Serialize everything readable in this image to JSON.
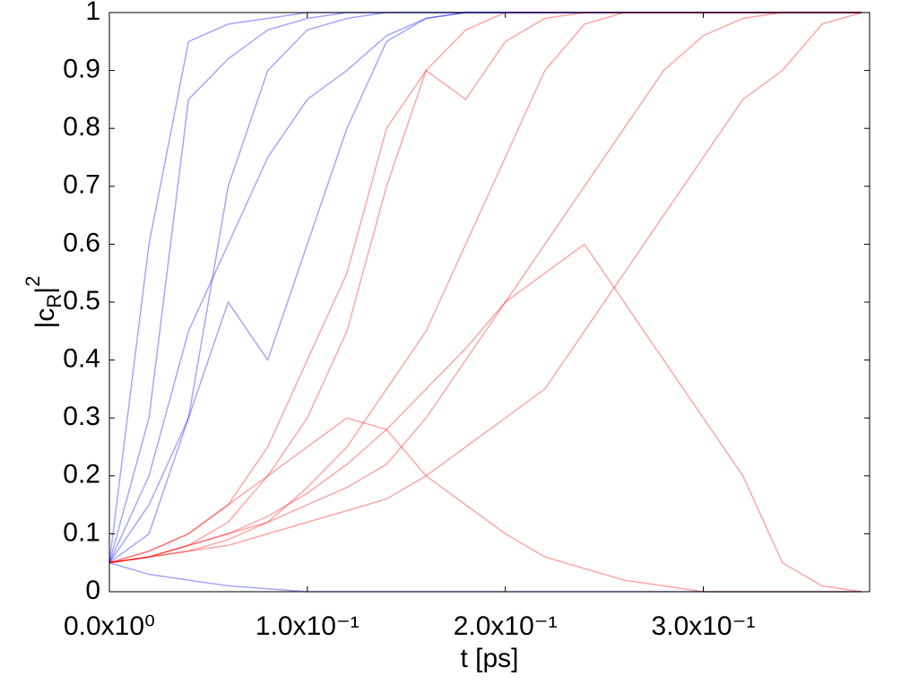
{
  "chart_data": {
    "type": "line",
    "xlabel": "t [ps]",
    "ylabel_parts": [
      "|c",
      "R",
      "|",
      "2"
    ],
    "xlim": [
      0,
      0.384
    ],
    "ylim": [
      0,
      1
    ],
    "xticks": [
      {
        "value": 0,
        "label": "0.0x10⁰"
      },
      {
        "value": 0.1,
        "label": "1.0x10⁻¹"
      },
      {
        "value": 0.2,
        "label": "2.0x10⁻¹"
      },
      {
        "value": 0.3,
        "label": "3.0x10⁻¹"
      }
    ],
    "yticks": [
      0,
      0.1,
      0.2,
      0.3,
      0.4,
      0.5,
      0.6,
      0.7,
      0.8,
      0.9,
      1
    ],
    "grid": false,
    "alpha": 0.35,
    "x": [
      0,
      0.02,
      0.04,
      0.06,
      0.08,
      0.1,
      0.12,
      0.14,
      0.16,
      0.18,
      0.2,
      0.22,
      0.24,
      0.26,
      0.28,
      0.3,
      0.32,
      0.34,
      0.36,
      0.38
    ],
    "series": [
      {
        "color": "#0000ff",
        "values": [
          0.05,
          0.6,
          0.95,
          0.98,
          0.99,
          1,
          1,
          1,
          1,
          1,
          1,
          1,
          1,
          1,
          1,
          1,
          1,
          1,
          1,
          1
        ]
      },
      {
        "color": "#0000ff",
        "values": [
          0.05,
          0.3,
          0.85,
          0.92,
          0.97,
          0.99,
          1,
          1,
          1,
          1,
          1,
          1,
          1,
          1,
          1,
          1,
          1,
          1,
          1,
          1
        ]
      },
      {
        "color": "#0000ff",
        "values": [
          0.05,
          0.1,
          0.3,
          0.7,
          0.9,
          0.97,
          0.99,
          1,
          1,
          1,
          1,
          1,
          1,
          1,
          1,
          1,
          1,
          1,
          1,
          1
        ]
      },
      {
        "color": "#0000ff",
        "values": [
          0.05,
          0.15,
          0.3,
          0.5,
          0.4,
          0.6,
          0.8,
          0.95,
          0.99,
          1,
          1,
          1,
          1,
          1,
          1,
          1,
          1,
          1,
          1,
          1
        ]
      },
      {
        "color": "#0000ff",
        "values": [
          0.05,
          0.2,
          0.45,
          0.6,
          0.75,
          0.85,
          0.9,
          0.96,
          0.99,
          1,
          1,
          1,
          1,
          1,
          1,
          1,
          1,
          1,
          1,
          1
        ]
      },
      {
        "color": "#0000ff",
        "values": [
          0.05,
          0.03,
          0.02,
          0.01,
          0.005,
          0,
          0,
          0,
          0,
          0,
          0,
          0,
          0,
          0,
          0,
          0,
          0,
          0,
          0,
          0
        ]
      },
      {
        "color": "#ff0000",
        "values": [
          0.05,
          0.06,
          0.08,
          0.12,
          0.2,
          0.3,
          0.45,
          0.7,
          0.9,
          0.97,
          1,
          1,
          1,
          1,
          1,
          1,
          1,
          1,
          1,
          1
        ]
      },
      {
        "color": "#ff0000",
        "values": [
          0.05,
          0.06,
          0.07,
          0.09,
          0.12,
          0.18,
          0.25,
          0.35,
          0.45,
          0.6,
          0.75,
          0.9,
          0.98,
          1,
          1,
          1,
          1,
          1,
          1,
          1
        ]
      },
      {
        "color": "#ff0000",
        "values": [
          0.05,
          0.07,
          0.1,
          0.15,
          0.25,
          0.4,
          0.55,
          0.8,
          0.9,
          0.85,
          0.95,
          0.99,
          1,
          1,
          1,
          1,
          1,
          1,
          1,
          1
        ]
      },
      {
        "color": "#ff0000",
        "values": [
          0.05,
          0.06,
          0.08,
          0.1,
          0.13,
          0.17,
          0.22,
          0.28,
          0.35,
          0.42,
          0.5,
          0.6,
          0.7,
          0.8,
          0.9,
          0.96,
          0.99,
          1,
          1,
          1
        ]
      },
      {
        "color": "#ff0000",
        "values": [
          0.05,
          0.07,
          0.1,
          0.15,
          0.2,
          0.25,
          0.3,
          0.28,
          0.2,
          0.15,
          0.1,
          0.06,
          0.04,
          0.02,
          0.01,
          0,
          0,
          0,
          0,
          0
        ]
      },
      {
        "color": "#ff0000",
        "values": [
          0.05,
          0.06,
          0.08,
          0.1,
          0.12,
          0.15,
          0.18,
          0.22,
          0.3,
          0.4,
          0.5,
          0.55,
          0.6,
          0.5,
          0.4,
          0.3,
          0.2,
          0.05,
          0.01,
          0
        ]
      },
      {
        "color": "#ff0000",
        "values": [
          0.05,
          0.06,
          0.07,
          0.08,
          0.1,
          0.12,
          0.14,
          0.16,
          0.2,
          0.25,
          0.3,
          0.35,
          0.45,
          0.55,
          0.65,
          0.75,
          0.85,
          0.9,
          0.98,
          1
        ]
      }
    ]
  }
}
